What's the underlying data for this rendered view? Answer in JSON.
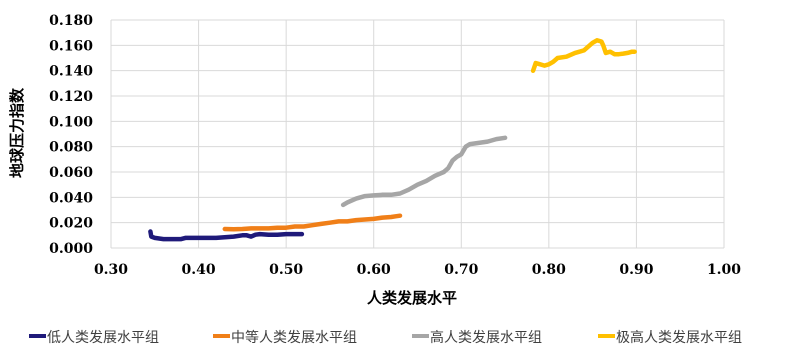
{
  "chart_data": {
    "type": "line",
    "xlabel": "人类发展水平",
    "ylabel": "地球压力指数",
    "xlim": [
      0.3,
      1.0
    ],
    "ylim": [
      0.0,
      0.18
    ],
    "x_ticks": [
      "0.30",
      "0.40",
      "0.50",
      "0.60",
      "0.70",
      "0.80",
      "0.90",
      "1.00"
    ],
    "y_ticks": [
      "0.000",
      "0.020",
      "0.040",
      "0.060",
      "0.080",
      "0.100",
      "0.120",
      "0.140",
      "0.160",
      "0.180"
    ],
    "grid": true,
    "legend_position": "bottom",
    "series": [
      {
        "name": "低人类发展水平组",
        "color": "#1f1a7a",
        "points": [
          [
            0.345,
            0.013
          ],
          [
            0.346,
            0.009
          ],
          [
            0.35,
            0.008
          ],
          [
            0.36,
            0.007
          ],
          [
            0.37,
            0.007
          ],
          [
            0.38,
            0.007
          ],
          [
            0.385,
            0.008
          ],
          [
            0.39,
            0.008
          ],
          [
            0.4,
            0.008
          ],
          [
            0.41,
            0.008
          ],
          [
            0.42,
            0.008
          ],
          [
            0.43,
            0.0085
          ],
          [
            0.44,
            0.009
          ],
          [
            0.45,
            0.01
          ],
          [
            0.455,
            0.01
          ],
          [
            0.46,
            0.009
          ],
          [
            0.465,
            0.0105
          ],
          [
            0.47,
            0.011
          ],
          [
            0.48,
            0.0105
          ],
          [
            0.49,
            0.0105
          ],
          [
            0.5,
            0.011
          ],
          [
            0.51,
            0.011
          ],
          [
            0.518,
            0.011
          ]
        ]
      },
      {
        "name": "中等人类发展水平组",
        "color": "#f07f18",
        "points": [
          [
            0.43,
            0.015
          ],
          [
            0.44,
            0.0148
          ],
          [
            0.45,
            0.015
          ],
          [
            0.46,
            0.0155
          ],
          [
            0.47,
            0.0155
          ],
          [
            0.48,
            0.0155
          ],
          [
            0.49,
            0.016
          ],
          [
            0.5,
            0.016
          ],
          [
            0.51,
            0.017
          ],
          [
            0.52,
            0.017
          ],
          [
            0.53,
            0.018
          ],
          [
            0.54,
            0.019
          ],
          [
            0.55,
            0.02
          ],
          [
            0.56,
            0.021
          ],
          [
            0.57,
            0.021
          ],
          [
            0.58,
            0.022
          ],
          [
            0.59,
            0.0225
          ],
          [
            0.6,
            0.023
          ],
          [
            0.61,
            0.024
          ],
          [
            0.62,
            0.0245
          ],
          [
            0.625,
            0.025
          ],
          [
            0.63,
            0.0255
          ]
        ]
      },
      {
        "name": "高人类发展水平组",
        "color": "#a6a6a6",
        "points": [
          [
            0.565,
            0.034
          ],
          [
            0.57,
            0.036
          ],
          [
            0.58,
            0.039
          ],
          [
            0.59,
            0.041
          ],
          [
            0.6,
            0.0415
          ],
          [
            0.61,
            0.042
          ],
          [
            0.62,
            0.042
          ],
          [
            0.63,
            0.043
          ],
          [
            0.64,
            0.046
          ],
          [
            0.65,
            0.05
          ],
          [
            0.66,
            0.053
          ],
          [
            0.67,
            0.057
          ],
          [
            0.68,
            0.06
          ],
          [
            0.685,
            0.063
          ],
          [
            0.69,
            0.069
          ],
          [
            0.695,
            0.072
          ],
          [
            0.7,
            0.074
          ],
          [
            0.705,
            0.08
          ],
          [
            0.71,
            0.082
          ],
          [
            0.72,
            0.083
          ],
          [
            0.73,
            0.084
          ],
          [
            0.74,
            0.086
          ],
          [
            0.75,
            0.087
          ]
        ]
      },
      {
        "name": "极高人类发展水平组",
        "color": "#ffc000",
        "points": [
          [
            0.782,
            0.14
          ],
          [
            0.785,
            0.146
          ],
          [
            0.79,
            0.145
          ],
          [
            0.795,
            0.144
          ],
          [
            0.8,
            0.145
          ],
          [
            0.805,
            0.147
          ],
          [
            0.81,
            0.15
          ],
          [
            0.82,
            0.151
          ],
          [
            0.83,
            0.154
          ],
          [
            0.835,
            0.155
          ],
          [
            0.84,
            0.156
          ],
          [
            0.845,
            0.159
          ],
          [
            0.85,
            0.162
          ],
          [
            0.855,
            0.164
          ],
          [
            0.86,
            0.163
          ],
          [
            0.862,
            0.16
          ],
          [
            0.865,
            0.154
          ],
          [
            0.87,
            0.155
          ],
          [
            0.875,
            0.153
          ],
          [
            0.88,
            0.153
          ],
          [
            0.885,
            0.1535
          ],
          [
            0.89,
            0.154
          ],
          [
            0.895,
            0.155
          ],
          [
            0.898,
            0.155
          ]
        ]
      }
    ]
  }
}
